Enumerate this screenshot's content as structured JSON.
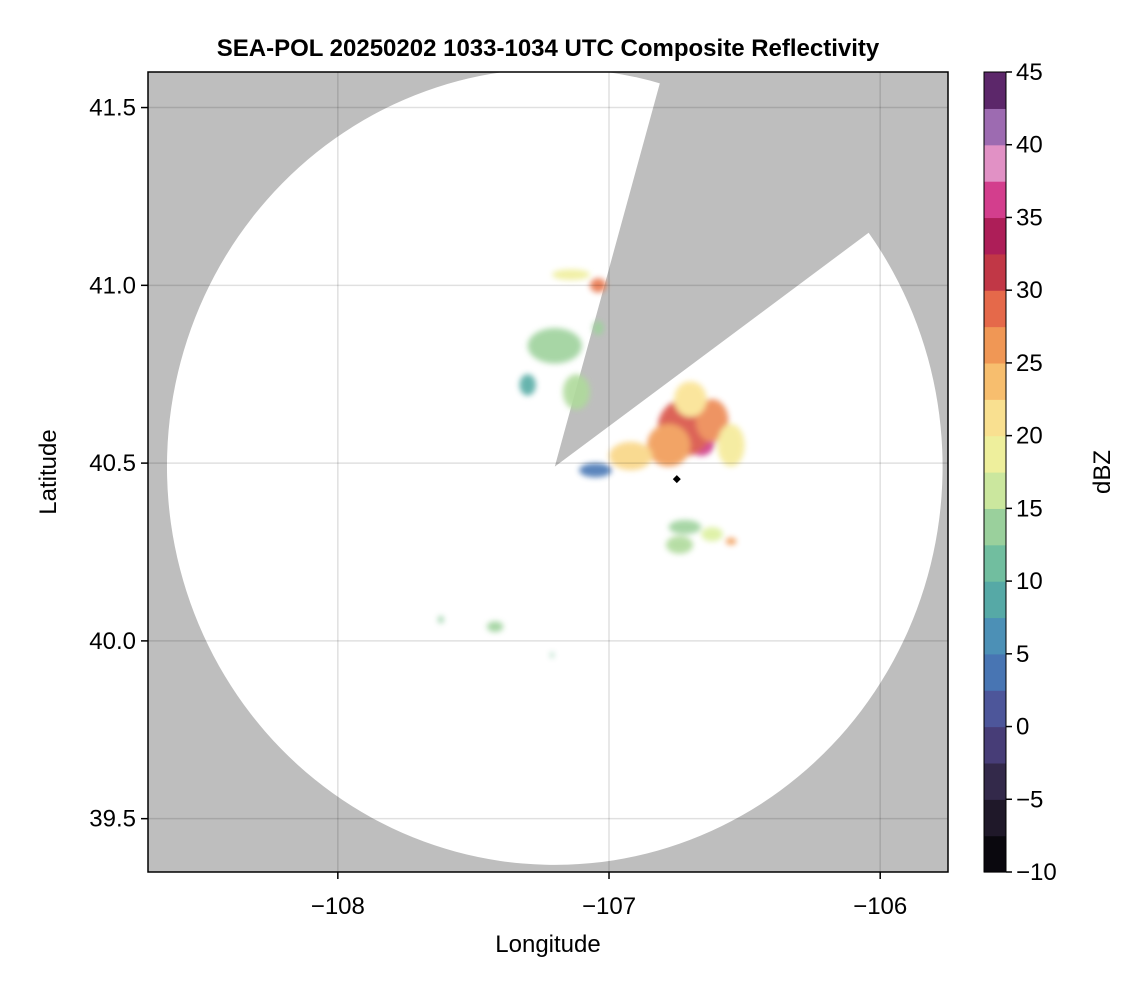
{
  "chart_data": {
    "type": "heatmap",
    "title": "SEA-POL 20250202 1033-1034 UTC Composite Reflectivity",
    "xlabel": "Longitude",
    "ylabel": "Latitude",
    "xlim": [
      -108.7,
      -105.75
    ],
    "ylim": [
      39.35,
      41.6
    ],
    "x_ticks": [
      -108,
      -107,
      -106
    ],
    "x_tick_labels": [
      "−108",
      "−107",
      "−106"
    ],
    "y_ticks": [
      39.5,
      40.0,
      40.5,
      41.0,
      41.5
    ],
    "y_tick_labels": [
      "39.5",
      "40.0",
      "40.5",
      "41.0",
      "41.5"
    ],
    "grid": true,
    "radar": {
      "center": [
        -107.2,
        40.49
      ],
      "max_range_deg_lon": 1.43,
      "max_range_deg_lat": 1.12,
      "blocked_sector": {
        "from_point": [
          -106.82,
          41.52
        ],
        "to_point": [
          -106.08,
          41.11
        ]
      }
    },
    "marker": {
      "lon": -106.75,
      "lat": 40.455,
      "shape": "diamond"
    },
    "colorbar": {
      "label": "dBZ",
      "min": -10,
      "max": 45,
      "step": 2.5,
      "ticks": [
        -10,
        -5,
        0,
        5,
        10,
        15,
        20,
        25,
        30,
        35,
        40,
        45
      ],
      "tick_labels": [
        "−10",
        "−5",
        "0",
        "5",
        "10",
        "15",
        "20",
        "25",
        "30",
        "35",
        "40",
        "45"
      ],
      "colormap": "spectral"
    },
    "echoes": [
      {
        "lon": -106.66,
        "lat": 40.56,
        "rx": 0.05,
        "ry": 0.04,
        "dbz": 36
      },
      {
        "lon": -106.72,
        "lat": 40.6,
        "rx": 0.1,
        "ry": 0.08,
        "dbz": 30
      },
      {
        "lon": -106.78,
        "lat": 40.55,
        "rx": 0.08,
        "ry": 0.06,
        "dbz": 26
      },
      {
        "lon": -106.62,
        "lat": 40.62,
        "rx": 0.06,
        "ry": 0.06,
        "dbz": 27
      },
      {
        "lon": -106.92,
        "lat": 40.52,
        "rx": 0.08,
        "ry": 0.04,
        "dbz": 22
      },
      {
        "lon": -106.7,
        "lat": 40.68,
        "rx": 0.06,
        "ry": 0.05,
        "dbz": 21
      },
      {
        "lon": -106.55,
        "lat": 40.55,
        "rx": 0.05,
        "ry": 0.06,
        "dbz": 20
      },
      {
        "lon": -107.04,
        "lat": 41.0,
        "rx": 0.03,
        "ry": 0.02,
        "dbz": 28
      },
      {
        "lon": -107.14,
        "lat": 41.03,
        "rx": 0.07,
        "ry": 0.015,
        "dbz": 19
      },
      {
        "lon": -107.2,
        "lat": 40.83,
        "rx": 0.1,
        "ry": 0.05,
        "dbz": 14
      },
      {
        "lon": -107.3,
        "lat": 40.72,
        "rx": 0.03,
        "ry": 0.03,
        "dbz": 9
      },
      {
        "lon": -107.12,
        "lat": 40.7,
        "rx": 0.05,
        "ry": 0.05,
        "dbz": 15
      },
      {
        "lon": -107.04,
        "lat": 40.88,
        "rx": 0.02,
        "ry": 0.02,
        "dbz": 14
      },
      {
        "lon": -107.05,
        "lat": 40.48,
        "rx": 0.06,
        "ry": 0.02,
        "dbz": 4
      },
      {
        "lon": -106.72,
        "lat": 40.32,
        "rx": 0.06,
        "ry": 0.02,
        "dbz": 14
      },
      {
        "lon": -106.74,
        "lat": 40.27,
        "rx": 0.05,
        "ry": 0.025,
        "dbz": 15
      },
      {
        "lon": -106.55,
        "lat": 40.28,
        "rx": 0.02,
        "ry": 0.01,
        "dbz": 26
      },
      {
        "lon": -106.62,
        "lat": 40.3,
        "rx": 0.04,
        "ry": 0.02,
        "dbz": 17
      },
      {
        "lon": -107.42,
        "lat": 40.04,
        "rx": 0.03,
        "ry": 0.015,
        "dbz": 14
      },
      {
        "lon": -107.62,
        "lat": 40.06,
        "rx": 0.01,
        "ry": 0.01,
        "dbz": 13
      },
      {
        "lon": -107.21,
        "lat": 39.96,
        "rx": 0.005,
        "ry": 0.008,
        "dbz": 12
      }
    ]
  }
}
